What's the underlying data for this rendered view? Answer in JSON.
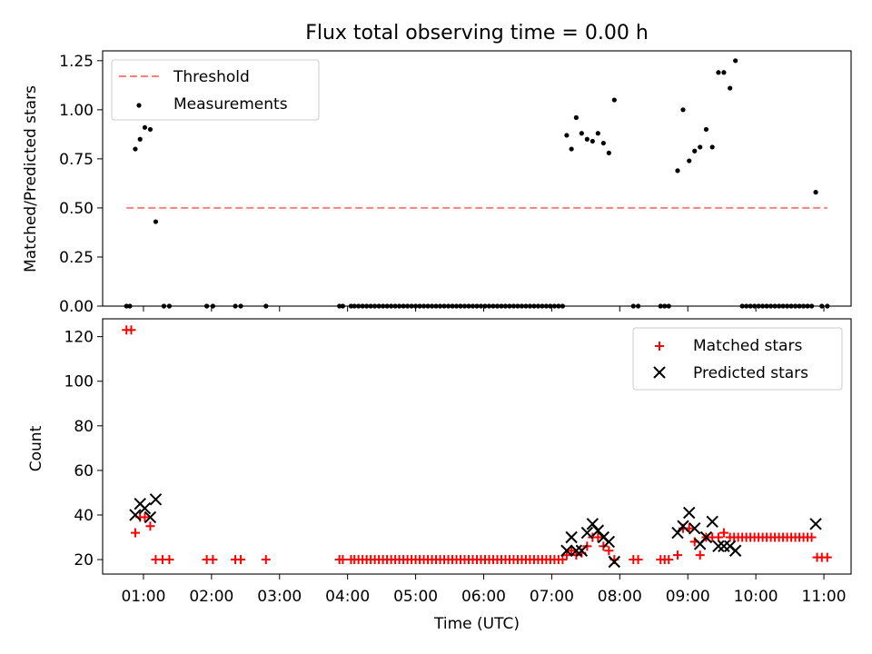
{
  "title": "Flux total observing time = 0.00 h",
  "xlabel": "Time (UTC)",
  "x_ticks": [
    "01:00",
    "02:00",
    "03:00",
    "04:00",
    "05:00",
    "06:00",
    "07:00",
    "08:00",
    "09:00",
    "10:00",
    "11:00"
  ],
  "colors": {
    "threshold": "#ff7f7f",
    "measurement": "#000000",
    "matched": "#ff0000",
    "predicted": "#000000"
  },
  "chart_data": [
    {
      "type": "scatter",
      "title": "Flux total observing time = 0.00 h",
      "ylabel": "Matched/Predicted stars",
      "xlim": [
        0.4,
        11.4
      ],
      "ylim": [
        0,
        1.3
      ],
      "y_ticks": [
        "0.00",
        "0.25",
        "0.50",
        "0.75",
        "1.00",
        "1.25"
      ],
      "legend": [
        "Threshold",
        "Measurements"
      ],
      "legend_position": "top-left",
      "threshold": {
        "value": 0.5,
        "x_range": [
          0.75,
          11.05
        ]
      },
      "measurements": [
        [
          0.75,
          0
        ],
        [
          0.8,
          0
        ],
        [
          0.88,
          0.8
        ],
        [
          0.95,
          0.85
        ],
        [
          1.02,
          0.91
        ],
        [
          1.1,
          0.9
        ],
        [
          1.18,
          0.43
        ],
        [
          1.3,
          0
        ],
        [
          1.38,
          0
        ],
        [
          1.93,
          0
        ],
        [
          2.02,
          0
        ],
        [
          2.35,
          0
        ],
        [
          2.43,
          0
        ],
        [
          2.8,
          0
        ],
        [
          3.88,
          0
        ],
        [
          3.93,
          0
        ],
        [
          4.05,
          0
        ],
        [
          4.1,
          0
        ],
        [
          4.16,
          0
        ],
        [
          4.22,
          0
        ],
        [
          4.28,
          0
        ],
        [
          4.34,
          0
        ],
        [
          4.4,
          0
        ],
        [
          4.46,
          0
        ],
        [
          4.52,
          0
        ],
        [
          4.58,
          0
        ],
        [
          4.64,
          0
        ],
        [
          4.7,
          0
        ],
        [
          4.76,
          0
        ],
        [
          4.82,
          0
        ],
        [
          4.88,
          0
        ],
        [
          4.94,
          0
        ],
        [
          5.0,
          0
        ],
        [
          5.06,
          0
        ],
        [
          5.12,
          0
        ],
        [
          5.18,
          0
        ],
        [
          5.24,
          0
        ],
        [
          5.3,
          0
        ],
        [
          5.36,
          0
        ],
        [
          5.42,
          0
        ],
        [
          5.48,
          0
        ],
        [
          5.54,
          0
        ],
        [
          5.6,
          0
        ],
        [
          5.66,
          0
        ],
        [
          5.72,
          0
        ],
        [
          5.78,
          0
        ],
        [
          5.84,
          0
        ],
        [
          5.9,
          0
        ],
        [
          5.96,
          0
        ],
        [
          6.02,
          0
        ],
        [
          6.08,
          0
        ],
        [
          6.14,
          0
        ],
        [
          6.2,
          0
        ],
        [
          6.26,
          0
        ],
        [
          6.32,
          0
        ],
        [
          6.38,
          0
        ],
        [
          6.44,
          0
        ],
        [
          6.5,
          0
        ],
        [
          6.56,
          0
        ],
        [
          6.62,
          0
        ],
        [
          6.68,
          0
        ],
        [
          6.74,
          0
        ],
        [
          6.8,
          0
        ],
        [
          6.86,
          0
        ],
        [
          6.92,
          0
        ],
        [
          6.98,
          0
        ],
        [
          7.04,
          0
        ],
        [
          7.1,
          0
        ],
        [
          7.16,
          0
        ],
        [
          7.22,
          0.87
        ],
        [
          7.29,
          0.8
        ],
        [
          7.36,
          0.96
        ],
        [
          7.44,
          0.88
        ],
        [
          7.52,
          0.85
        ],
        [
          7.6,
          0.84
        ],
        [
          7.68,
          0.88
        ],
        [
          7.76,
          0.83
        ],
        [
          7.84,
          0.78
        ],
        [
          7.92,
          1.05
        ],
        [
          8.2,
          0
        ],
        [
          8.27,
          0
        ],
        [
          8.6,
          0
        ],
        [
          8.66,
          0
        ],
        [
          8.72,
          0
        ],
        [
          8.85,
          0.69
        ],
        [
          8.93,
          1.0
        ],
        [
          9.02,
          0.74
        ],
        [
          9.1,
          0.79
        ],
        [
          9.18,
          0.81
        ],
        [
          9.27,
          0.9
        ],
        [
          9.36,
          0.81
        ],
        [
          9.45,
          1.19
        ],
        [
          9.53,
          1.19
        ],
        [
          9.62,
          1.11
        ],
        [
          9.7,
          1.25
        ],
        [
          9.8,
          0
        ],
        [
          9.86,
          0
        ],
        [
          9.92,
          0
        ],
        [
          9.98,
          0
        ],
        [
          10.04,
          0
        ],
        [
          10.1,
          0
        ],
        [
          10.16,
          0
        ],
        [
          10.22,
          0
        ],
        [
          10.28,
          0
        ],
        [
          10.34,
          0
        ],
        [
          10.4,
          0
        ],
        [
          10.46,
          0
        ],
        [
          10.52,
          0
        ],
        [
          10.58,
          0
        ],
        [
          10.64,
          0
        ],
        [
          10.7,
          0
        ],
        [
          10.76,
          0
        ],
        [
          10.82,
          0
        ],
        [
          10.88,
          0.58
        ],
        [
          10.97,
          0
        ],
        [
          11.05,
          0
        ]
      ]
    },
    {
      "type": "scatter",
      "ylabel": "Count",
      "xlabel": "Time (UTC)",
      "xlim": [
        0.4,
        11.4
      ],
      "ylim": [
        13.5,
        128
      ],
      "y_ticks": [
        "20",
        "40",
        "60",
        "80",
        "100",
        "120"
      ],
      "legend": [
        "Matched stars",
        "Predicted stars"
      ],
      "legend_position": "top-right",
      "matched": [
        [
          0.75,
          123
        ],
        [
          0.82,
          123
        ],
        [
          0.88,
          32
        ],
        [
          0.95,
          39
        ],
        [
          1.02,
          39
        ],
        [
          1.1,
          35
        ],
        [
          1.18,
          20
        ],
        [
          1.28,
          20
        ],
        [
          1.38,
          20
        ],
        [
          1.93,
          20
        ],
        [
          2.02,
          20
        ],
        [
          2.35,
          20
        ],
        [
          2.43,
          20
        ],
        [
          2.8,
          20
        ],
        [
          3.88,
          20
        ],
        [
          3.93,
          20
        ],
        [
          4.05,
          20
        ],
        [
          4.1,
          20
        ],
        [
          4.16,
          20
        ],
        [
          4.22,
          20
        ],
        [
          4.28,
          20
        ],
        [
          4.34,
          20
        ],
        [
          4.4,
          20
        ],
        [
          4.46,
          20
        ],
        [
          4.52,
          20
        ],
        [
          4.58,
          20
        ],
        [
          4.64,
          20
        ],
        [
          4.7,
          20
        ],
        [
          4.76,
          20
        ],
        [
          4.82,
          20
        ],
        [
          4.88,
          20
        ],
        [
          4.94,
          20
        ],
        [
          5.0,
          20
        ],
        [
          5.06,
          20
        ],
        [
          5.12,
          20
        ],
        [
          5.18,
          20
        ],
        [
          5.24,
          20
        ],
        [
          5.3,
          20
        ],
        [
          5.36,
          20
        ],
        [
          5.42,
          20
        ],
        [
          5.48,
          20
        ],
        [
          5.54,
          20
        ],
        [
          5.6,
          20
        ],
        [
          5.66,
          20
        ],
        [
          5.72,
          20
        ],
        [
          5.78,
          20
        ],
        [
          5.84,
          20
        ],
        [
          5.9,
          20
        ],
        [
          5.96,
          20
        ],
        [
          6.02,
          20
        ],
        [
          6.08,
          20
        ],
        [
          6.14,
          20
        ],
        [
          6.2,
          20
        ],
        [
          6.26,
          20
        ],
        [
          6.32,
          20
        ],
        [
          6.38,
          20
        ],
        [
          6.44,
          20
        ],
        [
          6.5,
          20
        ],
        [
          6.56,
          20
        ],
        [
          6.62,
          20
        ],
        [
          6.68,
          20
        ],
        [
          6.74,
          20
        ],
        [
          6.8,
          20
        ],
        [
          6.86,
          20
        ],
        [
          6.92,
          20
        ],
        [
          6.98,
          20
        ],
        [
          7.04,
          20
        ],
        [
          7.1,
          20
        ],
        [
          7.16,
          20
        ],
        [
          7.22,
          22
        ],
        [
          7.29,
          24
        ],
        [
          7.36,
          22
        ],
        [
          7.44,
          23
        ],
        [
          7.52,
          26
        ],
        [
          7.6,
          30
        ],
        [
          7.68,
          30
        ],
        [
          7.76,
          26
        ],
        [
          7.84,
          24
        ],
        [
          7.92,
          20
        ],
        [
          8.2,
          20
        ],
        [
          8.27,
          20
        ],
        [
          8.6,
          20
        ],
        [
          8.66,
          20
        ],
        [
          8.72,
          20
        ],
        [
          8.85,
          22
        ],
        [
          8.93,
          34
        ],
        [
          9.02,
          34
        ],
        [
          9.1,
          28
        ],
        [
          9.18,
          22
        ],
        [
          9.27,
          30
        ],
        [
          9.36,
          30
        ],
        [
          9.45,
          30
        ],
        [
          9.53,
          32
        ],
        [
          9.62,
          30
        ],
        [
          9.68,
          30
        ],
        [
          9.74,
          30
        ],
        [
          9.8,
          30
        ],
        [
          9.86,
          30
        ],
        [
          9.92,
          30
        ],
        [
          9.98,
          30
        ],
        [
          10.04,
          30
        ],
        [
          10.1,
          30
        ],
        [
          10.16,
          30
        ],
        [
          10.22,
          30
        ],
        [
          10.28,
          30
        ],
        [
          10.34,
          30
        ],
        [
          10.4,
          30
        ],
        [
          10.46,
          30
        ],
        [
          10.52,
          30
        ],
        [
          10.58,
          30
        ],
        [
          10.64,
          30
        ],
        [
          10.7,
          30
        ],
        [
          10.76,
          30
        ],
        [
          10.82,
          30
        ],
        [
          10.9,
          21
        ],
        [
          10.97,
          21
        ],
        [
          11.05,
          21
        ]
      ],
      "predicted": [
        [
          0.88,
          40
        ],
        [
          0.95,
          45
        ],
        [
          1.02,
          43
        ],
        [
          1.1,
          39
        ],
        [
          1.18,
          47
        ],
        [
          7.22,
          24
        ],
        [
          7.29,
          30
        ],
        [
          7.36,
          24
        ],
        [
          7.44,
          24
        ],
        [
          7.52,
          32
        ],
        [
          7.6,
          36
        ],
        [
          7.68,
          33
        ],
        [
          7.76,
          30
        ],
        [
          7.84,
          28
        ],
        [
          7.92,
          19
        ],
        [
          8.85,
          32
        ],
        [
          8.93,
          35
        ],
        [
          9.02,
          41
        ],
        [
          9.1,
          34
        ],
        [
          9.18,
          27
        ],
        [
          9.27,
          30
        ],
        [
          9.36,
          37
        ],
        [
          9.45,
          26
        ],
        [
          9.53,
          26
        ],
        [
          9.62,
          26
        ],
        [
          9.7,
          24
        ],
        [
          10.88,
          36
        ]
      ]
    }
  ]
}
